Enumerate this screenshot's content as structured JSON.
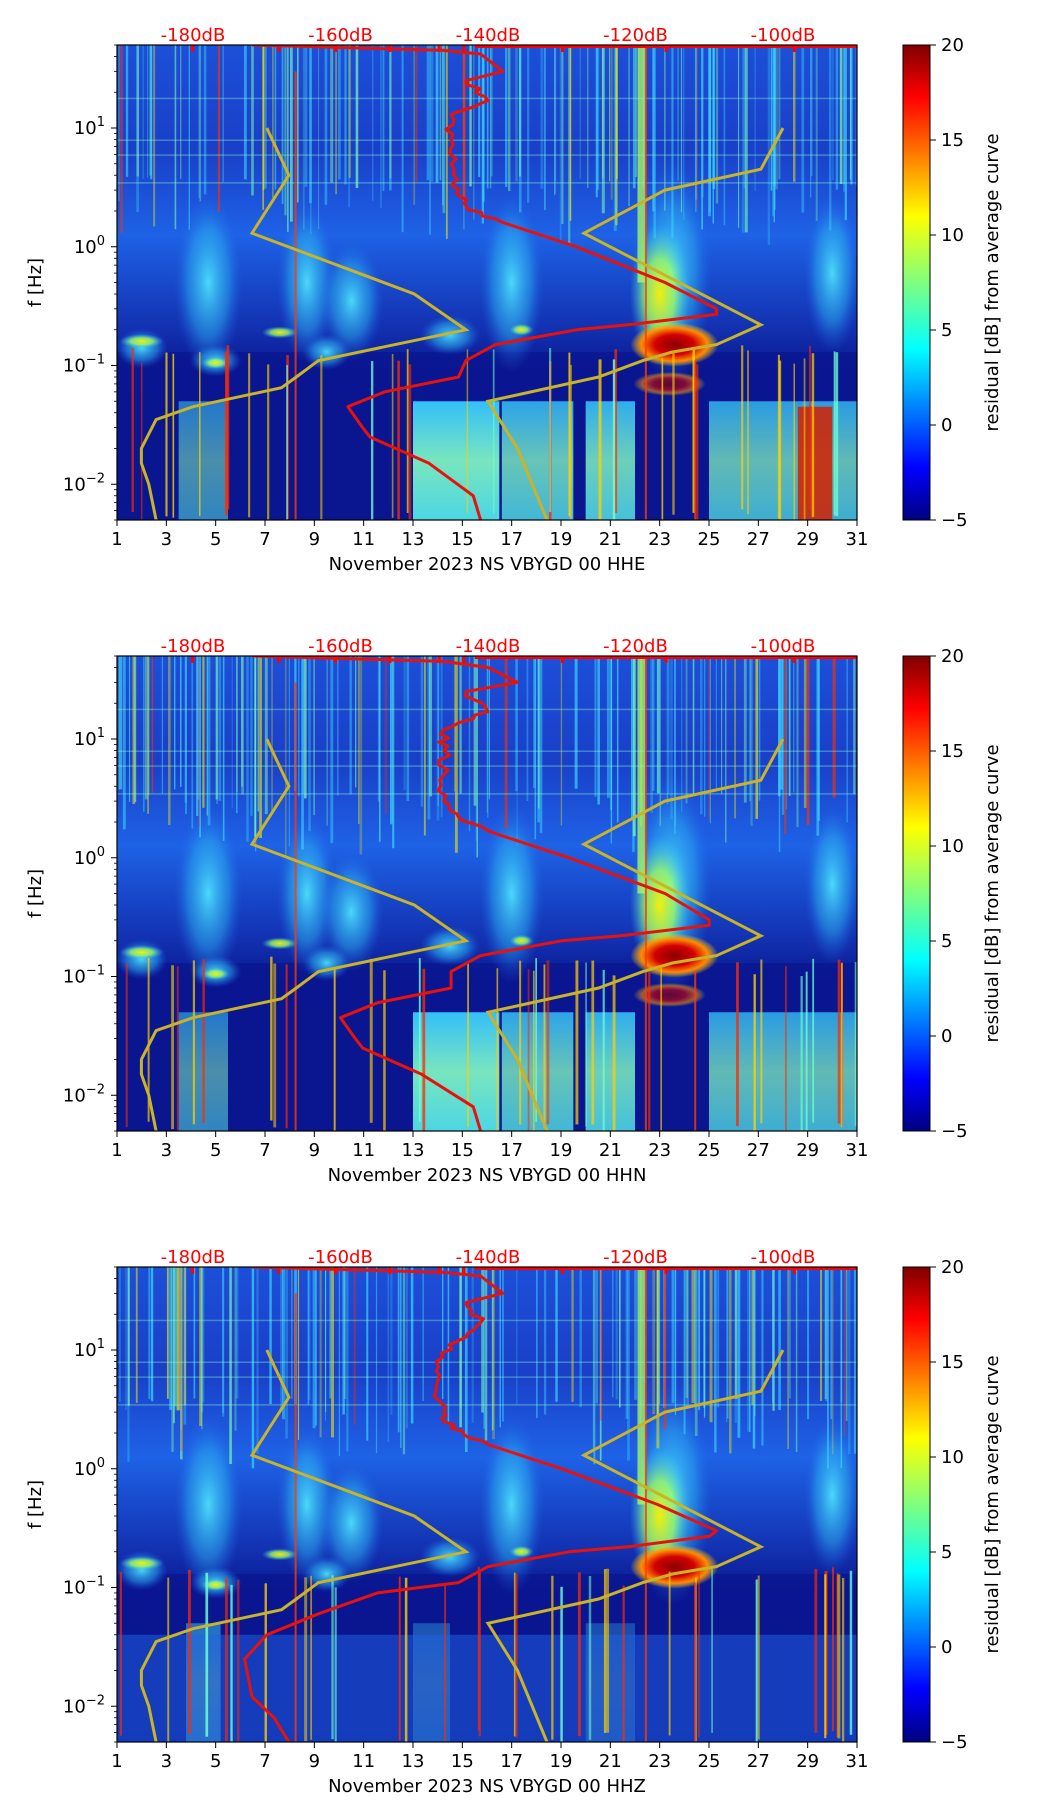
{
  "chart_data": [
    {
      "type": "heatmap",
      "xlabel": "November 2023 NS VBYGD 00 HHE",
      "ylabel": "f [Hz]",
      "xticks": [
        "1",
        "3",
        "5",
        "7",
        "9",
        "11",
        "13",
        "15",
        "17",
        "19",
        "21",
        "23",
        "25",
        "27",
        "29",
        "31"
      ],
      "xlim": [
        1,
        31
      ],
      "ylim": [
        0.005,
        50
      ],
      "yscale": "log",
      "yticks": [
        {
          "base": "10",
          "exp": "1"
        },
        {
          "base": "10",
          "exp": "0"
        },
        {
          "base": "10",
          "exp": "−1"
        },
        {
          "base": "10",
          "exp": "−2"
        }
      ],
      "top_db_ticks": [
        "-180dB",
        "-160dB",
        "-140dB",
        "-120dB",
        "-100dB"
      ],
      "colorbar": {
        "label": "residual [dB] from average curve",
        "ticks": [
          "20",
          "15",
          "10",
          "5",
          "0",
          "−5"
        ],
        "min": -5,
        "max": 20,
        "colormap": "jet"
      },
      "average_curve_color": "#e8120d",
      "model_curve_color": "#c8b32a",
      "average_curve_db": [
        [
          -172,
          50
        ],
        [
          -146,
          45
        ],
        [
          -141,
          42
        ],
        [
          -138,
          30
        ],
        [
          -143,
          25
        ],
        [
          -140,
          17
        ],
        [
          -145,
          13
        ],
        [
          -145,
          8
        ],
        [
          -145,
          5
        ],
        [
          -144,
          3
        ],
        [
          -143,
          2.2
        ],
        [
          -138,
          1.6
        ],
        [
          -128,
          1.0
        ],
        [
          -116,
          0.5
        ],
        [
          -109,
          0.3
        ],
        [
          -109,
          0.27
        ],
        [
          -121,
          0.22
        ],
        [
          -128,
          0.2
        ],
        [
          -139,
          0.15
        ],
        [
          -143,
          0.11
        ],
        [
          -144,
          0.08
        ],
        [
          -154,
          0.06
        ],
        [
          -159,
          0.045
        ],
        [
          -157,
          0.03
        ],
        [
          -156,
          0.025
        ],
        [
          -148,
          0.015
        ],
        [
          -142,
          0.008
        ],
        [
          -141,
          0.005
        ]
      ]
    },
    {
      "type": "heatmap",
      "xlabel": "November 2023 NS VBYGD 00 HHN",
      "ylabel": "f [Hz]",
      "xticks": [
        "1",
        "3",
        "5",
        "7",
        "9",
        "11",
        "13",
        "15",
        "17",
        "19",
        "21",
        "23",
        "25",
        "27",
        "29",
        "31"
      ],
      "xlim": [
        1,
        31
      ],
      "ylim": [
        0.005,
        50
      ],
      "yscale": "log",
      "yticks": [
        {
          "base": "10",
          "exp": "1"
        },
        {
          "base": "10",
          "exp": "0"
        },
        {
          "base": "10",
          "exp": "−1"
        },
        {
          "base": "10",
          "exp": "−2"
        }
      ],
      "top_db_ticks": [
        "-180dB",
        "-160dB",
        "-140dB",
        "-120dB",
        "-100dB"
      ],
      "colorbar": {
        "label": "residual [dB] from average curve",
        "ticks": [
          "20",
          "15",
          "10",
          "5",
          "0",
          "−5"
        ],
        "min": -5,
        "max": 20,
        "colormap": "jet"
      },
      "average_curve_color": "#e8120d",
      "model_curve_color": "#c8b32a",
      "average_curve_db": [
        [
          -172,
          50
        ],
        [
          -146,
          45
        ],
        [
          -140,
          40
        ],
        [
          -136,
          30
        ],
        [
          -143,
          25
        ],
        [
          -140,
          17
        ],
        [
          -146,
          12
        ],
        [
          -146,
          8
        ],
        [
          -146,
          5
        ],
        [
          -146,
          3
        ],
        [
          -144,
          2.2
        ],
        [
          -139,
          1.6
        ],
        [
          -129,
          1.0
        ],
        [
          -116,
          0.5
        ],
        [
          -110,
          0.3
        ],
        [
          -110,
          0.27
        ],
        [
          -122,
          0.22
        ],
        [
          -130,
          0.2
        ],
        [
          -141,
          0.15
        ],
        [
          -145,
          0.11
        ],
        [
          -145,
          0.08
        ],
        [
          -155,
          0.06
        ],
        [
          -160,
          0.045
        ],
        [
          -158,
          0.03
        ],
        [
          -157,
          0.025
        ],
        [
          -149,
          0.015
        ],
        [
          -142,
          0.008
        ],
        [
          -141,
          0.005
        ]
      ]
    },
    {
      "type": "heatmap",
      "xlabel": "November 2023 NS VBYGD 00 HHZ",
      "ylabel": "f [Hz]",
      "xticks": [
        "1",
        "3",
        "5",
        "7",
        "9",
        "11",
        "13",
        "15",
        "17",
        "19",
        "21",
        "23",
        "25",
        "27",
        "29",
        "31"
      ],
      "xlim": [
        1,
        31
      ],
      "ylim": [
        0.005,
        50
      ],
      "yscale": "log",
      "yticks": [
        {
          "base": "10",
          "exp": "1"
        },
        {
          "base": "10",
          "exp": "0"
        },
        {
          "base": "10",
          "exp": "−1"
        },
        {
          "base": "10",
          "exp": "−2"
        }
      ],
      "top_db_ticks": [
        "-180dB",
        "-160dB",
        "-140dB",
        "-120dB",
        "-100dB"
      ],
      "colorbar": {
        "label": "residual [dB] from average curve",
        "ticks": [
          "20",
          "15",
          "10",
          "5",
          "0",
          "−5"
        ],
        "min": -5,
        "max": 20,
        "colormap": "jet"
      },
      "average_curve_color": "#e8120d",
      "model_curve_color": "#c8b32a",
      "average_curve_db": [
        [
          -172,
          50
        ],
        [
          -146,
          45
        ],
        [
          -141,
          42
        ],
        [
          -138,
          30
        ],
        [
          -143,
          25
        ],
        [
          -141,
          17
        ],
        [
          -144,
          12
        ],
        [
          -147,
          8
        ],
        [
          -147,
          5
        ],
        [
          -146,
          3
        ],
        [
          -145,
          2.2
        ],
        [
          -140,
          1.6
        ],
        [
          -130,
          1.0
        ],
        [
          -117,
          0.5
        ],
        [
          -109,
          0.3
        ],
        [
          -110,
          0.27
        ],
        [
          -121,
          0.22
        ],
        [
          -129,
          0.2
        ],
        [
          -140,
          0.15
        ],
        [
          -144,
          0.11
        ],
        [
          -155,
          0.09
        ],
        [
          -163,
          0.06
        ],
        [
          -170,
          0.04
        ],
        [
          -173,
          0.025
        ],
        [
          -172,
          0.012
        ],
        [
          -169,
          0.008
        ],
        [
          -167,
          0.005
        ]
      ]
    }
  ],
  "model_curve_db": [
    [
      -170,
      10
    ],
    [
      -167,
      4
    ],
    [
      -172,
      1.3
    ],
    [
      -150,
      0.4
    ],
    [
      -143,
      0.2
    ],
    [
      -163,
      0.11
    ],
    [
      -166,
      0.08
    ],
    [
      -168,
      0.065
    ],
    [
      -180,
      0.045
    ],
    [
      -185,
      0.035
    ],
    [
      -187,
      0.02
    ],
    [
      -187,
      0.015
    ],
    [
      -186,
      0.01
    ],
    [
      -185,
      0.005
    ]
  ],
  "model_curve_high_db": [
    [
      -100,
      10
    ],
    [
      -103,
      4.5
    ],
    [
      -116,
      3
    ],
    [
      -127,
      1.3
    ],
    [
      -103,
      0.22
    ],
    [
      -109,
      0.15
    ],
    [
      -115,
      0.13
    ],
    [
      -119,
      0.11
    ],
    [
      -125,
      0.08
    ],
    [
      -140,
      0.05
    ],
    [
      -136,
      0.02
    ],
    [
      -132,
      0.005
    ]
  ]
}
